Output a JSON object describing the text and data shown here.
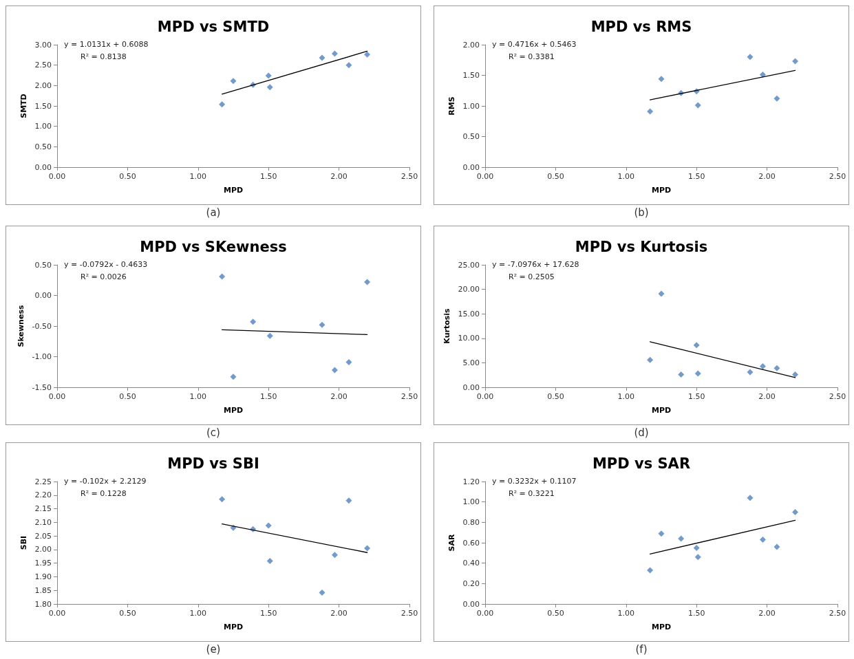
{
  "chart_data": [
    {
      "type": "scatter",
      "title": "MPD vs SMTD",
      "xlabel": "MPD",
      "ylabel": "SMTD",
      "annotations": [
        "y = 1.0131x + 0.6088",
        "R² = 0.8138",
        "(a)"
      ],
      "marker": "diamond",
      "grid": false,
      "series": [
        {
          "type": "scatter",
          "color": "#4f81bd",
          "x": [
            1.17,
            1.25,
            1.39,
            1.5,
            1.51,
            1.88,
            1.97,
            2.07,
            2.2
          ],
          "values": [
            1.54,
            2.11,
            2.02,
            2.24,
            1.96,
            2.68,
            2.78,
            2.5,
            2.76
          ]
        },
        {
          "type": "line",
          "color": "#000000",
          "marker": "none",
          "x": [
            1.17,
            2.2
          ],
          "values": [
            1.79,
            2.84
          ]
        }
      ],
      "xlim": [
        0,
        2.5
      ],
      "xticks": [
        {
          "value": 0,
          "label": "0.00"
        },
        {
          "value": 0.5,
          "label": "0.50"
        },
        {
          "value": 1,
          "label": "1.00"
        },
        {
          "value": 1.5,
          "label": "1.50"
        },
        {
          "value": 2,
          "label": "2.00"
        },
        {
          "value": 2.5,
          "label": "2.50"
        }
      ],
      "ylim": [
        0,
        3
      ],
      "yticks": [
        {
          "value": 0,
          "label": "0.00"
        },
        {
          "value": 0.5,
          "label": "0.50"
        },
        {
          "value": 1,
          "label": "1.00"
        },
        {
          "value": 1.5,
          "label": "1.50"
        },
        {
          "value": 2,
          "label": "2.00"
        },
        {
          "value": 2.5,
          "label": "2.50"
        },
        {
          "value": 3,
          "label": "3.00"
        }
      ]
    },
    {
      "type": "scatter",
      "title": "MPD vs RMS",
      "xlabel": "MPD",
      "ylabel": "RMS",
      "annotations": [
        "y = 0.4716x + 0.5463",
        "R² = 0.3381",
        "(b)"
      ],
      "marker": "diamond",
      "grid": false,
      "series": [
        {
          "type": "scatter",
          "color": "#4f81bd",
          "x": [
            1.17,
            1.25,
            1.39,
            1.5,
            1.51,
            1.88,
            1.97,
            2.07,
            2.2
          ],
          "values": [
            0.91,
            1.44,
            1.21,
            1.24,
            1.01,
            1.8,
            1.51,
            1.12,
            1.73
          ]
        },
        {
          "type": "line",
          "color": "#000000",
          "marker": "none",
          "x": [
            1.17,
            2.2
          ],
          "values": [
            1.1,
            1.58
          ]
        }
      ],
      "xlim": [
        0,
        2.5
      ],
      "xticks": [
        {
          "value": 0,
          "label": "0.00"
        },
        {
          "value": 0.5,
          "label": "0.50"
        },
        {
          "value": 1,
          "label": "1.00"
        },
        {
          "value": 1.5,
          "label": "1.50"
        },
        {
          "value": 2,
          "label": "2.00"
        },
        {
          "value": 2.5,
          "label": "2.50"
        }
      ],
      "ylim": [
        0,
        2
      ],
      "yticks": [
        {
          "value": 0,
          "label": "0.00"
        },
        {
          "value": 0.5,
          "label": "0.50"
        },
        {
          "value": 1,
          "label": "1.00"
        },
        {
          "value": 1.5,
          "label": "1.50"
        },
        {
          "value": 2,
          "label": "2.00"
        }
      ]
    },
    {
      "type": "scatter",
      "title": "MPD vs SKewness",
      "xlabel": "MPD",
      "ylabel": "Skewness",
      "annotations": [
        "y = -0.0792x - 0.4633",
        "R² = 0.0026",
        "(c)"
      ],
      "marker": "diamond",
      "grid": false,
      "series": [
        {
          "type": "scatter",
          "color": "#4f81bd",
          "x": [
            1.17,
            1.25,
            1.39,
            1.51,
            1.88,
            1.97,
            2.07,
            2.2
          ],
          "values": [
            0.31,
            -1.33,
            -0.43,
            -0.66,
            -0.48,
            -1.22,
            -1.09,
            0.22
          ]
        },
        {
          "type": "line",
          "color": "#000000",
          "marker": "none",
          "x": [
            1.17,
            2.2
          ],
          "values": [
            -0.56,
            -0.64
          ]
        }
      ],
      "xlim": [
        0,
        2.5
      ],
      "xticks": [
        {
          "value": 0,
          "label": "0.00"
        },
        {
          "value": 0.5,
          "label": "0.50"
        },
        {
          "value": 1,
          "label": "1.00"
        },
        {
          "value": 1.5,
          "label": "1.50"
        },
        {
          "value": 2,
          "label": "2.00"
        },
        {
          "value": 2.5,
          "label": "2.50"
        }
      ],
      "ylim": [
        -1.5,
        0.5
      ],
      "yticks": [
        {
          "value": -1.5,
          "label": "-1.50"
        },
        {
          "value": -1,
          "label": "-1.00"
        },
        {
          "value": -0.5,
          "label": "-0.50"
        },
        {
          "value": 0,
          "label": "0.00"
        },
        {
          "value": 0.5,
          "label": "0.50"
        }
      ]
    },
    {
      "type": "scatter",
      "title": "MPD vs Kurtosis",
      "xlabel": "MPD",
      "ylabel": "Kurtosis",
      "annotations": [
        "y = -7.0976x + 17.628",
        "R² = 0.2505",
        "(d)"
      ],
      "marker": "diamond",
      "grid": false,
      "series": [
        {
          "type": "scatter",
          "color": "#4f81bd",
          "x": [
            1.17,
            1.25,
            1.39,
            1.5,
            1.51,
            1.88,
            1.97,
            2.07,
            2.2
          ],
          "values": [
            5.6,
            19.1,
            2.6,
            8.6,
            2.8,
            3.1,
            4.3,
            3.9,
            2.6
          ]
        },
        {
          "type": "line",
          "color": "#000000",
          "marker": "none",
          "x": [
            1.17,
            2.2
          ],
          "values": [
            9.3,
            2.0
          ]
        }
      ],
      "xlim": [
        0,
        2.5
      ],
      "xticks": [
        {
          "value": 0,
          "label": "0.00"
        },
        {
          "value": 0.5,
          "label": "0.50"
        },
        {
          "value": 1,
          "label": "1.00"
        },
        {
          "value": 1.5,
          "label": "1.50"
        },
        {
          "value": 2,
          "label": "2.00"
        },
        {
          "value": 2.5,
          "label": "2.50"
        }
      ],
      "ylim": [
        0,
        25
      ],
      "yticks": [
        {
          "value": 0,
          "label": "0.00"
        },
        {
          "value": 5,
          "label": "5.00"
        },
        {
          "value": 10,
          "label": "10.00"
        },
        {
          "value": 15,
          "label": "15.00"
        },
        {
          "value": 20,
          "label": "20.00"
        },
        {
          "value": 25,
          "label": "25.00"
        }
      ]
    },
    {
      "type": "scatter",
      "title": "MPD vs SBI",
      "xlabel": "MPD",
      "ylabel": "SBI",
      "annotations": [
        "y = -0.102x + 2.2129",
        "R² = 0.1228",
        "(e)"
      ],
      "marker": "diamond",
      "grid": false,
      "series": [
        {
          "type": "scatter",
          "color": "#4f81bd",
          "x": [
            1.17,
            1.25,
            1.39,
            1.5,
            1.51,
            1.88,
            1.97,
            2.07,
            2.2
          ],
          "values": [
            2.185,
            2.08,
            2.075,
            2.088,
            1.958,
            1.842,
            1.98,
            2.18,
            2.005
          ]
        },
        {
          "type": "line",
          "color": "#000000",
          "marker": "none",
          "x": [
            1.17,
            2.2
          ],
          "values": [
            2.094,
            1.989
          ]
        }
      ],
      "xlim": [
        0,
        2.5
      ],
      "xticks": [
        {
          "value": 0,
          "label": "0.00"
        },
        {
          "value": 0.5,
          "label": "0.50"
        },
        {
          "value": 1,
          "label": "1.00"
        },
        {
          "value": 1.5,
          "label": "1.50"
        },
        {
          "value": 2,
          "label": "2.00"
        },
        {
          "value": 2.5,
          "label": "2.50"
        }
      ],
      "ylim": [
        1.8,
        2.25
      ],
      "yticks": [
        {
          "value": 1.8,
          "label": "1.80"
        },
        {
          "value": 1.85,
          "label": "1.85"
        },
        {
          "value": 1.9,
          "label": "1.90"
        },
        {
          "value": 1.95,
          "label": "1.95"
        },
        {
          "value": 2,
          "label": "2.00"
        },
        {
          "value": 2.05,
          "label": "2.05"
        },
        {
          "value": 2.1,
          "label": "2.10"
        },
        {
          "value": 2.15,
          "label": "2.15"
        },
        {
          "value": 2.2,
          "label": "2.20"
        },
        {
          "value": 2.25,
          "label": "2.25"
        }
      ]
    },
    {
      "type": "scatter",
      "title": "MPD vs SAR",
      "xlabel": "MPD",
      "ylabel": "SAR",
      "annotations": [
        "y = 0.3232x + 0.1107",
        "R² = 0.3221",
        "(f)"
      ],
      "marker": "diamond",
      "grid": false,
      "series": [
        {
          "type": "scatter",
          "color": "#4f81bd",
          "x": [
            1.17,
            1.25,
            1.39,
            1.5,
            1.51,
            1.88,
            1.97,
            2.07,
            2.2
          ],
          "values": [
            0.33,
            0.69,
            0.64,
            0.55,
            0.46,
            1.04,
            0.63,
            0.56,
            0.9
          ]
        },
        {
          "type": "line",
          "color": "#000000",
          "marker": "none",
          "x": [
            1.17,
            2.2
          ],
          "values": [
            0.49,
            0.82
          ]
        }
      ],
      "xlim": [
        0,
        2.5
      ],
      "xticks": [
        {
          "value": 0,
          "label": "0.00"
        },
        {
          "value": 0.5,
          "label": "0.50"
        },
        {
          "value": 1,
          "label": "1.00"
        },
        {
          "value": 1.5,
          "label": "1.50"
        },
        {
          "value": 2,
          "label": "2.00"
        },
        {
          "value": 2.5,
          "label": "2.50"
        }
      ],
      "ylim": [
        0,
        1.2
      ],
      "yticks": [
        {
          "value": 0,
          "label": "0.00"
        },
        {
          "value": 0.2,
          "label": "0.20"
        },
        {
          "value": 0.4,
          "label": "0.40"
        },
        {
          "value": 0.6,
          "label": "0.60"
        },
        {
          "value": 0.8,
          "label": "0.80"
        },
        {
          "value": 1,
          "label": "1.00"
        },
        {
          "value": 1.2,
          "label": "1.20"
        }
      ]
    }
  ]
}
